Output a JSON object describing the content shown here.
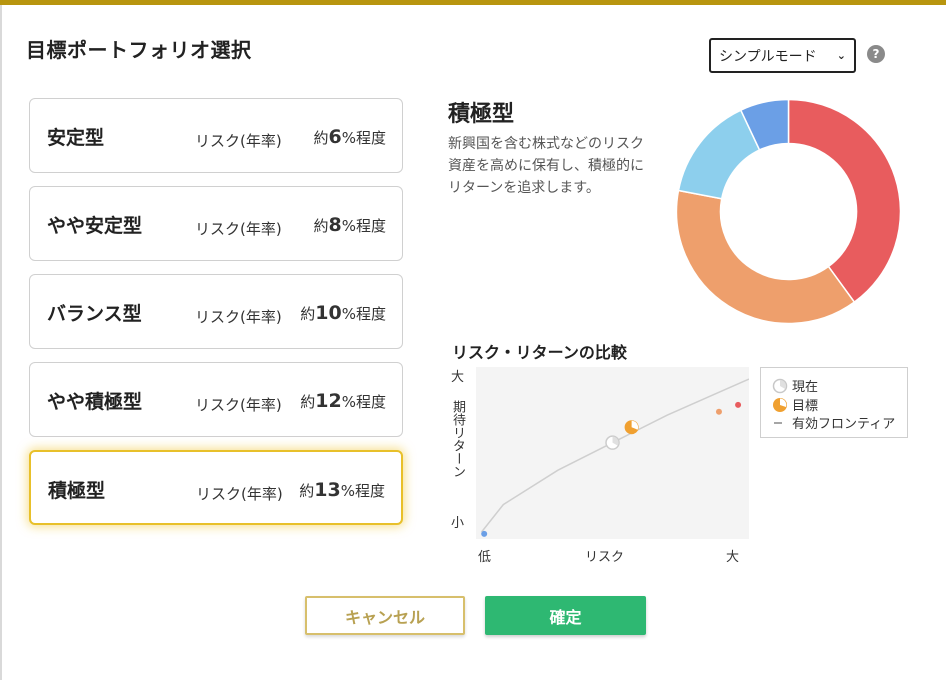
{
  "dialog": {
    "title": "目標ポートフォリオ選択"
  },
  "mode_select": {
    "value": "シンプルモード",
    "options": [
      "シンプルモード"
    ]
  },
  "help": {
    "glyph": "?"
  },
  "portfolios": [
    {
      "name": "安定型",
      "risk_label": "リスク(年率)",
      "prefix": "約",
      "number": "6",
      "suffix": "%程度"
    },
    {
      "name": "やや安定型",
      "risk_label": "リスク(年率)",
      "prefix": "約",
      "number": "8",
      "suffix": "%程度"
    },
    {
      "name": "バランス型",
      "risk_label": "リスク(年率)",
      "prefix": "約",
      "number": "10",
      "suffix": "%程度"
    },
    {
      "name": "やや積極型",
      "risk_label": "リスク(年率)",
      "prefix": "約",
      "number": "12",
      "suffix": "%程度"
    },
    {
      "name": "積極型",
      "risk_label": "リスク(年率)",
      "prefix": "約",
      "number": "13",
      "suffix": "%程度",
      "selected": true
    }
  ],
  "detail": {
    "name": "積極型",
    "description": "新興国を含む株式などのリスク資産を高めに保有し、積極的にリターンを追求します。"
  },
  "colors": {
    "accent_gold": "#e8c02a",
    "confirm_green": "#2eb872",
    "donut": [
      "#e85c5e",
      "#ee9f6c",
      "#8dcfed",
      "#6b9fe6"
    ]
  },
  "chart_data": [
    {
      "type": "pie",
      "variant": "donut",
      "values": [
        40,
        38,
        15,
        7
      ],
      "colors": [
        "#e85c5e",
        "#ee9f6c",
        "#8dcfed",
        "#6b9fe6"
      ]
    },
    {
      "type": "scatter",
      "title": "リスク・リターンの比較",
      "xlabel": "リスク",
      "ylabel": "期待リターン",
      "x_ticks": [
        "低",
        "大"
      ],
      "y_ticks": [
        "小",
        "大"
      ],
      "xlim": [
        0,
        100
      ],
      "ylim": [
        0,
        100
      ],
      "grid": false,
      "legend_position": "right",
      "series": [
        {
          "name": "現在",
          "points": [
            [
              50,
              56
            ]
          ]
        },
        {
          "name": "目標",
          "points": [
            [
              57,
              65
            ]
          ]
        },
        {
          "name": "有効フロンティア",
          "line": [
            [
              2,
              4
            ],
            [
              10,
              20
            ],
            [
              30,
              40
            ],
            [
              50,
              56
            ],
            [
              70,
              72
            ],
            [
              90,
              86
            ],
            [
              100,
              93
            ]
          ]
        }
      ],
      "other_points": [
        {
          "x": 3,
          "y": 3,
          "color": "#6b9fe6"
        },
        {
          "x": 89,
          "y": 74,
          "color": "#ee9f6c"
        },
        {
          "x": 96,
          "y": 78,
          "color": "#e85c5e"
        }
      ]
    }
  ],
  "buttons": {
    "cancel": "キャンセル",
    "confirm": "確定"
  }
}
